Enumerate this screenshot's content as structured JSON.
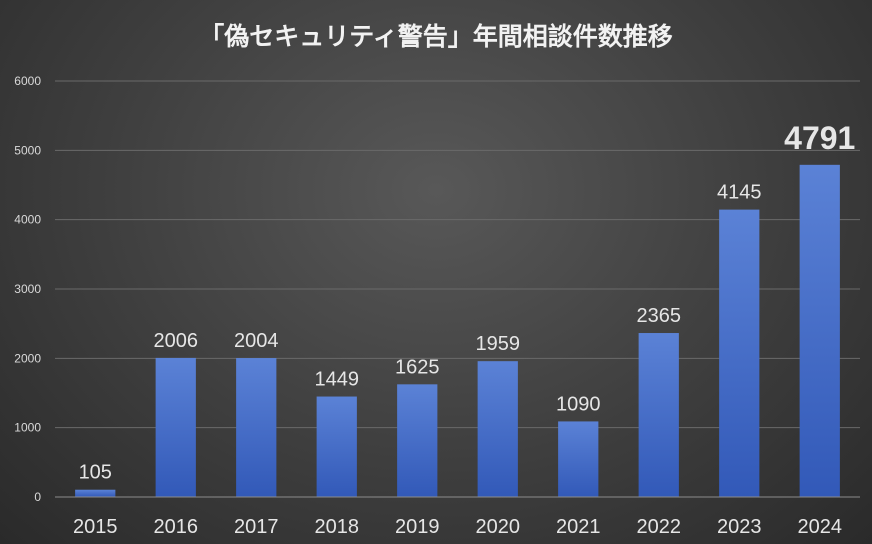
{
  "chart_data": {
    "type": "bar",
    "title": "「偽セキュリティ警告」年間相談件数推移",
    "xlabel": "",
    "ylabel": "",
    "categories": [
      "2015",
      "2016",
      "2017",
      "2018",
      "2019",
      "2020",
      "2021",
      "2022",
      "2023",
      "2024"
    ],
    "values": [
      105,
      2006,
      2004,
      1449,
      1625,
      1959,
      1090,
      2365,
      4145,
      4791
    ],
    "data_labels": [
      "105",
      "2006",
      "2004",
      "1449",
      "1625",
      "1959",
      "1090",
      "2365",
      "4145",
      "4791"
    ],
    "yticks": [
      "0",
      "1000",
      "2000",
      "3000",
      "4000",
      "5000",
      "6000"
    ],
    "ylim": [
      0,
      6000
    ],
    "grid": true,
    "legend": "none",
    "highlight_category": "2024",
    "colors": {
      "bar_top": "#5b82d6",
      "bar_bottom": "#3259b8",
      "label": "#e6e6e6",
      "highlight_label": "#ffc000",
      "gridline": "#6a6a6a",
      "axis": "#8c8c8c"
    }
  }
}
